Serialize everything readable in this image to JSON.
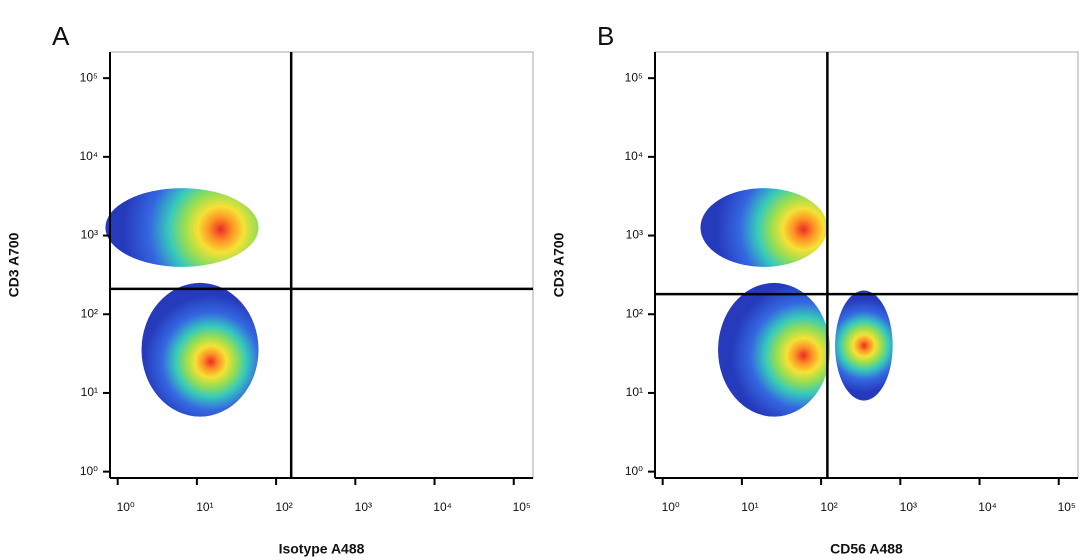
{
  "chart_data": [
    {
      "type": "density",
      "panel": "A",
      "xlabel": "Isotype A488",
      "ylabel": "CD3 A700",
      "log_scale": true,
      "xlim": [
        0.8,
        175000
      ],
      "ylim": [
        0.83,
        215000
      ],
      "xticks": [
        {
          "value": 1,
          "label": "10⁰"
        },
        {
          "value": 10,
          "label": "10¹"
        },
        {
          "value": 100,
          "label": "10²"
        },
        {
          "value": 1000,
          "label": "10³"
        },
        {
          "value": 10000,
          "label": "10⁴"
        },
        {
          "value": 100000,
          "label": "10⁵"
        }
      ],
      "yticks": [
        {
          "value": 1,
          "label": "10⁰"
        },
        {
          "value": 10,
          "label": "10¹"
        },
        {
          "value": 100,
          "label": "10²"
        },
        {
          "value": 1000,
          "label": "10³"
        },
        {
          "value": 10000,
          "label": "10⁴"
        },
        {
          "value": 100000,
          "label": "10⁵"
        }
      ],
      "gates": {
        "x": 155,
        "y": 210
      },
      "populations": [
        {
          "x": 20,
          "y": 1200,
          "x_range": [
            0.7,
            60
          ],
          "y_range": [
            400,
            4000
          ]
        },
        {
          "x": 15,
          "y": 25,
          "x_range": [
            2,
            60
          ],
          "y_range": [
            5,
            250
          ]
        }
      ]
    },
    {
      "type": "density",
      "panel": "B",
      "xlabel": "CD56 A488",
      "ylabel": "CD3 A700",
      "log_scale": true,
      "xlim": [
        0.8,
        175000
      ],
      "ylim": [
        0.83,
        215000
      ],
      "xticks": [
        {
          "value": 1,
          "label": "10⁰"
        },
        {
          "value": 10,
          "label": "10¹"
        },
        {
          "value": 100,
          "label": "10²"
        },
        {
          "value": 1000,
          "label": "10³"
        },
        {
          "value": 10000,
          "label": "10⁴"
        },
        {
          "value": 100000,
          "label": "10⁵"
        }
      ],
      "yticks": [
        {
          "value": 1,
          "label": "10⁰"
        },
        {
          "value": 10,
          "label": "10¹"
        },
        {
          "value": 100,
          "label": "10²"
        },
        {
          "value": 1000,
          "label": "10³"
        },
        {
          "value": 10000,
          "label": "10⁴"
        },
        {
          "value": 100000,
          "label": "10⁵"
        }
      ],
      "gates": {
        "x": 120,
        "y": 180
      },
      "populations": [
        {
          "x": 60,
          "y": 1200,
          "x_range": [
            3,
            120
          ],
          "y_range": [
            400,
            4000
          ]
        },
        {
          "x": 60,
          "y": 30,
          "x_range": [
            5,
            130
          ],
          "y_range": [
            5,
            250
          ]
        },
        {
          "x": 350,
          "y": 40,
          "x_range": [
            150,
            800
          ],
          "y_range": [
            8,
            200
          ]
        }
      ]
    }
  ]
}
